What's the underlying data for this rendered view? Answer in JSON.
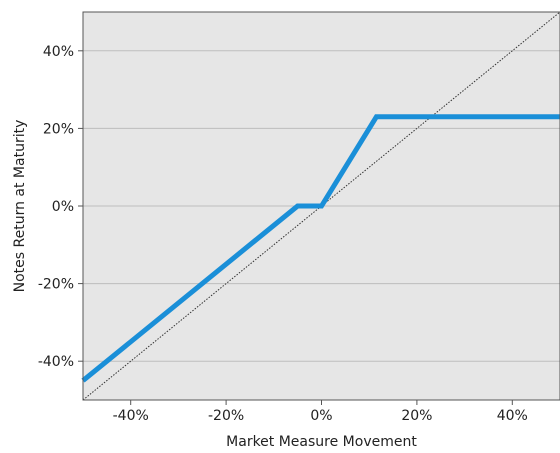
{
  "chart_data": {
    "type": "line",
    "title": "",
    "xlabel": "Market Measure Movement",
    "ylabel": "Notes Return at Maturity",
    "xlim": [
      -50,
      50
    ],
    "ylim": [
      -50,
      50
    ],
    "x_ticks": [
      -40,
      -20,
      0,
      20,
      40
    ],
    "x_tick_labels": [
      "-40%",
      "-20%",
      "0%",
      "20%",
      "40%"
    ],
    "y_ticks": [
      40,
      20,
      0,
      -20,
      -40
    ],
    "y_tick_labels": [
      "40%",
      "20%",
      "0%",
      "-20%",
      "-40%"
    ],
    "grid": "horizontal",
    "legend": "none",
    "series": [
      {
        "style": "solid",
        "color": "#1a8fd8",
        "points": [
          [
            -50,
            -45
          ],
          [
            -5,
            0
          ],
          [
            0,
            0
          ],
          [
            11.5,
            23
          ],
          [
            50,
            23
          ]
        ]
      },
      {
        "style": "dotted",
        "color": "#333333",
        "points": [
          [
            -50,
            -50
          ],
          [
            50,
            50
          ]
        ]
      }
    ],
    "colors": {
      "plot_background": "#e6e6e6",
      "grid": "#bdbdbd",
      "frame": "#555555"
    }
  }
}
